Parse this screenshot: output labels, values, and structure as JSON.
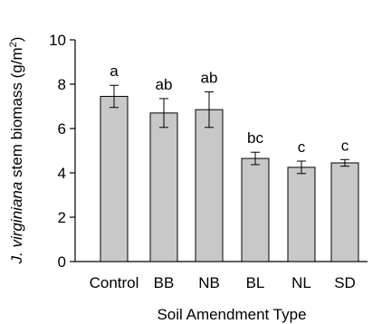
{
  "chart_data": {
    "type": "bar",
    "categories": [
      "Control",
      "BB",
      "NB",
      "BL",
      "NL",
      "SD"
    ],
    "series": [
      {
        "values": [
          7.45,
          6.7,
          6.85,
          4.65,
          4.25,
          4.45
        ],
        "error": [
          0.5,
          0.65,
          0.8,
          0.28,
          0.28,
          0.15
        ],
        "letters": [
          "a",
          "ab",
          "ab",
          "bc",
          "c",
          "c"
        ],
        "color": "#c8c8c8"
      }
    ],
    "ylim": [
      0,
      10
    ],
    "yticks": [
      "0",
      "2",
      "4",
      "6",
      "8",
      "10"
    ],
    "xlabel": "Soil Amendment Type",
    "ylabel": {
      "italic": "J. virginiana",
      "main": " stem biomass (g/m",
      "sup": "2",
      "end": ")"
    },
    "grid": false
  }
}
